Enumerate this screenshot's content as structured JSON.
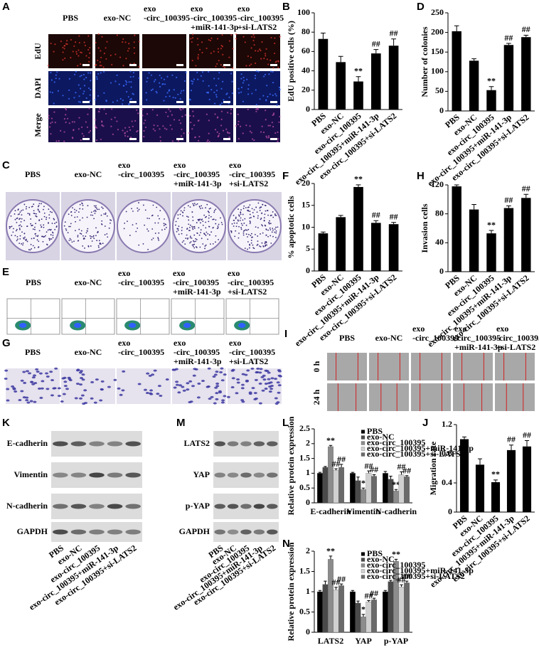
{
  "group_headers": [
    [
      "PBS"
    ],
    [
      "exo-NC"
    ],
    [
      "exo",
      "-circ_100395"
    ],
    [
      "exo",
      "-circ_100395",
      "+miR-141-3p"
    ],
    [
      "exo",
      "-circ_100395",
      "+si-LATS2"
    ]
  ],
  "image_panels": [
    {
      "label": "A",
      "rows": [
        "EdU",
        "DAPI",
        "Merge"
      ]
    },
    {
      "label": "C"
    },
    {
      "label": "E"
    },
    {
      "label": "G"
    },
    {
      "label": "I",
      "rows": [
        "0 h",
        "24 h"
      ]
    }
  ],
  "blot_panels": [
    {
      "label": "K",
      "rows": [
        "E-cadherin",
        "Vimentin",
        "N-cadherin",
        "GAPDH"
      ],
      "categories": [
        "PBS",
        "exo-NC",
        "exo-circ_100395",
        "exo-circ_100395+miR-141-3p",
        "exo-circ_100395+si-LATS2"
      ]
    },
    {
      "label": "M",
      "rows": [
        "LATS2",
        "YAP",
        "p-YAP",
        "GAPDH"
      ],
      "categories": [
        "PBS",
        "exo-NC",
        "exo-circ_100395",
        "exo-circ_100395+miR-141-3p",
        "exo-circ_100395+si-LATS2"
      ]
    }
  ],
  "chart_data": [
    {
      "type": "bar",
      "panel": "B",
      "ylabel": "EdU positive cells (%)",
      "categories": [
        "PBS",
        "exo-NC",
        "exo-circ_100395",
        "exo-circ_100395+miR-141-3p",
        "exo-circ_100395+si-LATS2"
      ],
      "values": [
        73,
        49,
        29,
        58,
        66
      ],
      "errors": [
        6,
        6,
        5,
        4,
        7
      ],
      "annotations": [
        null,
        null,
        "**",
        "##",
        "##"
      ],
      "color": "#000000",
      "ylim": [
        0,
        100
      ],
      "yticks": [
        0,
        20,
        40,
        60,
        80,
        100
      ]
    },
    {
      "type": "bar",
      "panel": "D",
      "ylabel": "Number of colonies",
      "categories": [
        "PBS",
        "exo-NC",
        "exo-circ_100395",
        "exo-circ_100395+miR-141-3p",
        "exo-circ_100395+si-LATS2"
      ],
      "values": [
        203,
        128,
        53,
        168,
        188
      ],
      "errors": [
        14,
        5,
        9,
        4,
        5
      ],
      "annotations": [
        null,
        null,
        "**",
        "##",
        "##"
      ],
      "color": "#000000",
      "ylim": [
        0,
        250
      ],
      "yticks": [
        0,
        50,
        100,
        150,
        200,
        250
      ]
    },
    {
      "type": "bar",
      "panel": "F",
      "ylabel": "% apoptotic cells",
      "categories": [
        "PBS",
        "exo-NC",
        "exo-circ_100395",
        "exo-circ_100395+miR-141-3p",
        "exo-circ_100395+si-LATS2"
      ],
      "values": [
        8.6,
        12.3,
        19.2,
        11.0,
        10.7
      ],
      "errors": [
        0.3,
        0.4,
        0.5,
        0.5,
        0.4
      ],
      "annotations": [
        null,
        null,
        "**",
        "##",
        "##"
      ],
      "color": "#000000",
      "ylim": [
        0,
        20
      ],
      "yticks": [
        0,
        5,
        10,
        15,
        20
      ]
    },
    {
      "type": "bar",
      "panel": "H",
      "ylabel": "Invasion cells",
      "categories": [
        "PBS",
        "exo-NC",
        "exo-circ_100395",
        "exo-circ_100395+miR-141-3p",
        "exo-circ_100395+si-LATS2"
      ],
      "values": [
        118,
        86,
        53,
        88,
        102
      ],
      "errors": [
        2,
        7,
        4,
        3,
        5
      ],
      "annotations": [
        null,
        null,
        "**",
        "##",
        "##"
      ],
      "color": "#000000",
      "ylim": [
        0,
        120
      ],
      "yticks": [
        0,
        40,
        80,
        120
      ]
    },
    {
      "type": "bar",
      "panel": "J",
      "ylabel": "Migration rate",
      "categories": [
        "PBS",
        "exo-NC",
        "exo-circ_100395",
        "exo-circ_100395+miR-141-3p",
        "exo-circ_100395+si-LATS2"
      ],
      "values": [
        1.0,
        0.65,
        0.41,
        0.85,
        0.9
      ],
      "errors": [
        0.03,
        0.08,
        0.03,
        0.07,
        0.08
      ],
      "annotations": [
        null,
        null,
        "**",
        "##",
        "##"
      ],
      "color": "#000000",
      "ylim": [
        0,
        1.2
      ],
      "yticks": [
        0,
        0.4,
        0.8,
        1.2
      ]
    },
    {
      "type": "grouped_bar",
      "panel": "L",
      "ylabel": "Relative protein expression",
      "categories": [
        "E-cadherin",
        "Vimentin",
        "N-cadherin"
      ],
      "legend": "upper right",
      "ylim": [
        0,
        2.5
      ],
      "yticks": [
        0,
        0.5,
        1,
        1.5,
        2,
        2.5
      ],
      "series": [
        {
          "name": "PBS",
          "color": "#000000",
          "values": [
            1.0,
            1.0,
            1.0
          ],
          "errors": [
            0.03,
            0.03,
            0.06
          ],
          "annotations": [
            null,
            null,
            null
          ]
        },
        {
          "name": "exo-NC",
          "color": "#4a4a4a",
          "values": [
            1.2,
            0.75,
            0.8
          ],
          "errors": [
            0.03,
            0.12,
            0.1
          ],
          "annotations": [
            null,
            null,
            null
          ]
        },
        {
          "name": "exo-circ_100395",
          "color": "#8c8c8c",
          "values": [
            1.9,
            0.45,
            0.4
          ],
          "errors": [
            0.04,
            0.05,
            0.05
          ],
          "annotations": [
            "**",
            "*",
            "**"
          ]
        },
        {
          "name": "exo-circ_100395+miR-141-3p",
          "color": "#d0d0d0",
          "values": [
            1.1,
            1.0,
            0.95
          ],
          "errors": [
            0.05,
            0.08,
            0.1
          ],
          "annotations": [
            "##",
            "##",
            "##"
          ]
        },
        {
          "name": "exo-circ_100395+si-LATS2",
          "color": "#6a6a6a",
          "values": [
            1.2,
            0.9,
            0.88
          ],
          "errors": [
            0.1,
            0.05,
            0.04
          ],
          "annotations": [
            "##",
            "##",
            "##"
          ]
        }
      ]
    },
    {
      "type": "grouped_bar",
      "panel": "N",
      "ylabel": "Relative protein expression",
      "categories": [
        "LATS2",
        "YAP",
        "p-YAP"
      ],
      "legend": "upper right",
      "ylim": [
        0,
        2
      ],
      "yticks": [
        0,
        0.5,
        1,
        1.5,
        2
      ],
      "series": [
        {
          "name": "PBS",
          "color": "#000000",
          "values": [
            1.0,
            1.0,
            1.0
          ],
          "errors": [
            0.03,
            0.03,
            0.03
          ],
          "annotations": [
            null,
            null,
            null
          ]
        },
        {
          "name": "exo-NC",
          "color": "#4a4a4a",
          "values": [
            1.18,
            0.72,
            1.25
          ],
          "errors": [
            0.08,
            0.05,
            0.03
          ],
          "annotations": [
            null,
            null,
            null
          ]
        },
        {
          "name": "exo-circ_100395",
          "color": "#8c8c8c",
          "values": [
            1.8,
            0.38,
            1.75
          ],
          "errors": [
            0.08,
            0.06,
            0.05
          ],
          "annotations": [
            "**",
            "*",
            "**"
          ]
        },
        {
          "name": "exo-circ_100395+miR-141-3p",
          "color": "#d0d0d0",
          "values": [
            1.05,
            0.75,
            1.12
          ],
          "errors": [
            0.06,
            0.03,
            0.05
          ],
          "annotations": [
            "##",
            "##",
            "##"
          ]
        },
        {
          "name": "exo-circ_100395+si-LATS2",
          "color": "#6a6a6a",
          "values": [
            1.15,
            0.8,
            1.22
          ],
          "errors": [
            0.04,
            0.04,
            0.04
          ],
          "annotations": [
            "##",
            "##",
            "##"
          ]
        }
      ]
    }
  ]
}
